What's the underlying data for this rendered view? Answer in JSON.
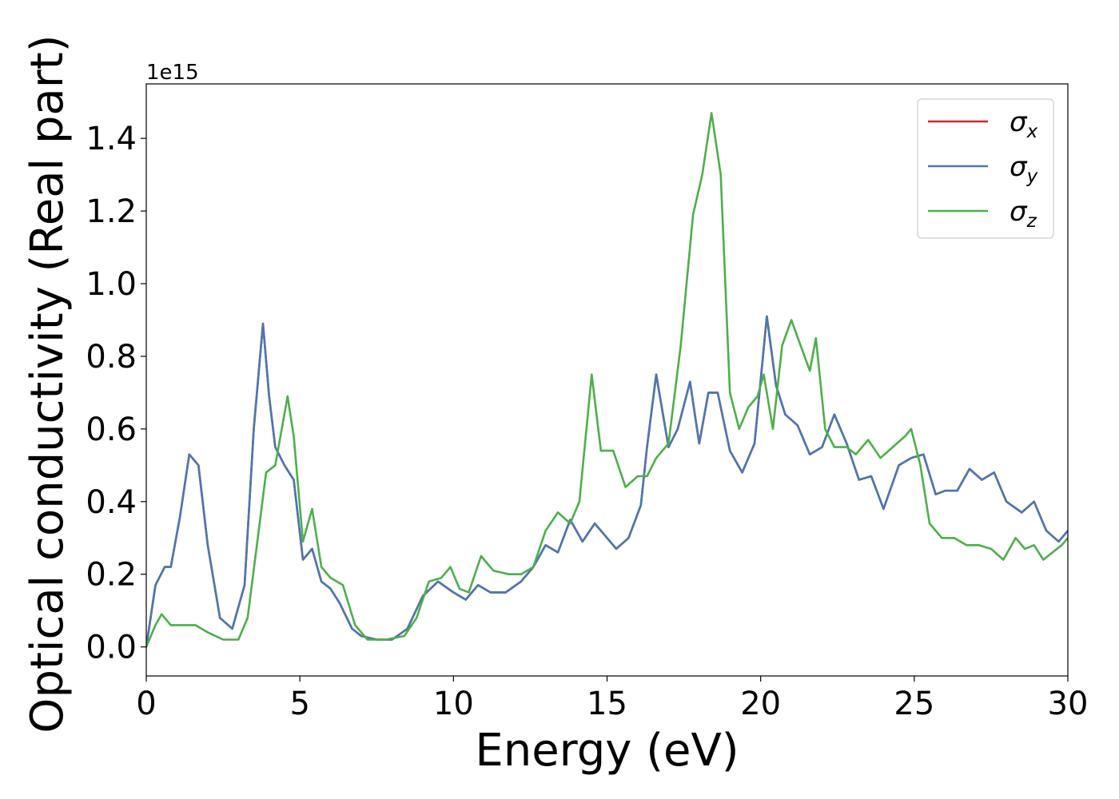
{
  "chart_data": {
    "type": "line",
    "title": "",
    "xlabel": "Energy (eV)",
    "ylabel": "Optical conductivity (Real part)",
    "offset_text": "1e15",
    "xlim": [
      0,
      30
    ],
    "ylim": [
      -0.08,
      1.55
    ],
    "xticks": [
      0,
      5,
      10,
      15,
      20,
      25,
      30
    ],
    "xtick_labels": [
      "0",
      "5",
      "10",
      "15",
      "20",
      "25",
      "30"
    ],
    "yticks": [
      0.0,
      0.2,
      0.4,
      0.6,
      0.8,
      1.0,
      1.2,
      1.4
    ],
    "ytick_labels": [
      "0.0",
      "0.2",
      "0.4",
      "0.6",
      "0.8",
      "1.0",
      "1.2",
      "1.4"
    ],
    "grid": false,
    "legend_position": "top-right",
    "series": [
      {
        "name": "σ",
        "subscript": "x",
        "color": "#d62728",
        "x": [
          0,
          0.3,
          0.6,
          0.8,
          1.1,
          1.4,
          1.7,
          2.0,
          2.4,
          2.8,
          3.2,
          3.5,
          3.8,
          4.0,
          4.2,
          4.5,
          4.8,
          5.1,
          5.4,
          5.7,
          6.0,
          6.3,
          6.7,
          7.0,
          7.5,
          8.0,
          8.5,
          9.0,
          9.5,
          10.0,
          10.4,
          10.8,
          11.2,
          11.7,
          12.2,
          12.6,
          13.0,
          13.4,
          13.8,
          14.2,
          14.6,
          15.0,
          15.3,
          15.7,
          16.1,
          16.3,
          16.6,
          17.0,
          17.3,
          17.7,
          18.0,
          18.3,
          18.6,
          19.0,
          19.4,
          19.8,
          20.2,
          20.5,
          20.8,
          21.2,
          21.6,
          22.0,
          22.4,
          22.8,
          23.2,
          23.6,
          24.0,
          24.5,
          24.9,
          25.3,
          25.7,
          26.0,
          26.4,
          26.8,
          27.2,
          27.6,
          28.0,
          28.5,
          28.9,
          29.3,
          29.7,
          30.0
        ],
        "values": [
          0.0,
          0.17,
          0.22,
          0.22,
          0.36,
          0.53,
          0.5,
          0.28,
          0.08,
          0.05,
          0.17,
          0.6,
          0.89,
          0.69,
          0.55,
          0.5,
          0.46,
          0.24,
          0.27,
          0.18,
          0.16,
          0.12,
          0.05,
          0.03,
          0.02,
          0.02,
          0.05,
          0.14,
          0.18,
          0.15,
          0.13,
          0.17,
          0.15,
          0.15,
          0.18,
          0.22,
          0.28,
          0.26,
          0.35,
          0.29,
          0.34,
          0.3,
          0.27,
          0.3,
          0.39,
          0.55,
          0.75,
          0.55,
          0.6,
          0.73,
          0.56,
          0.7,
          0.7,
          0.54,
          0.48,
          0.56,
          0.91,
          0.72,
          0.64,
          0.61,
          0.53,
          0.55,
          0.64,
          0.56,
          0.46,
          0.47,
          0.38,
          0.5,
          0.52,
          0.53,
          0.42,
          0.43,
          0.43,
          0.49,
          0.46,
          0.48,
          0.4,
          0.37,
          0.4,
          0.32,
          0.29,
          0.32
        ]
      },
      {
        "name": "σ",
        "subscript": "y",
        "color": "#4a78b0",
        "x": [
          0,
          0.3,
          0.6,
          0.8,
          1.1,
          1.4,
          1.7,
          2.0,
          2.4,
          2.8,
          3.2,
          3.5,
          3.8,
          4.0,
          4.2,
          4.5,
          4.8,
          5.1,
          5.4,
          5.7,
          6.0,
          6.3,
          6.7,
          7.0,
          7.5,
          8.0,
          8.5,
          9.0,
          9.5,
          10.0,
          10.4,
          10.8,
          11.2,
          11.7,
          12.2,
          12.6,
          13.0,
          13.4,
          13.8,
          14.2,
          14.6,
          15.0,
          15.3,
          15.7,
          16.1,
          16.3,
          16.6,
          17.0,
          17.3,
          17.7,
          18.0,
          18.3,
          18.6,
          19.0,
          19.4,
          19.8,
          20.2,
          20.5,
          20.8,
          21.2,
          21.6,
          22.0,
          22.4,
          22.8,
          23.2,
          23.6,
          24.0,
          24.5,
          24.9,
          25.3,
          25.7,
          26.0,
          26.4,
          26.8,
          27.2,
          27.6,
          28.0,
          28.5,
          28.9,
          29.3,
          29.7,
          30.0
        ],
        "values": [
          0.0,
          0.17,
          0.22,
          0.22,
          0.36,
          0.53,
          0.5,
          0.28,
          0.08,
          0.05,
          0.17,
          0.6,
          0.89,
          0.69,
          0.55,
          0.5,
          0.46,
          0.24,
          0.27,
          0.18,
          0.16,
          0.12,
          0.05,
          0.03,
          0.02,
          0.02,
          0.05,
          0.14,
          0.18,
          0.15,
          0.13,
          0.17,
          0.15,
          0.15,
          0.18,
          0.22,
          0.28,
          0.26,
          0.35,
          0.29,
          0.34,
          0.3,
          0.27,
          0.3,
          0.39,
          0.55,
          0.75,
          0.55,
          0.6,
          0.73,
          0.56,
          0.7,
          0.7,
          0.54,
          0.48,
          0.56,
          0.91,
          0.72,
          0.64,
          0.61,
          0.53,
          0.55,
          0.64,
          0.56,
          0.46,
          0.47,
          0.38,
          0.5,
          0.52,
          0.53,
          0.42,
          0.43,
          0.43,
          0.49,
          0.46,
          0.48,
          0.4,
          0.37,
          0.4,
          0.32,
          0.29,
          0.32
        ]
      },
      {
        "name": "σ",
        "subscript": "z",
        "color": "#4daf4a",
        "x": [
          0,
          0.3,
          0.5,
          0.8,
          1.2,
          1.6,
          2.0,
          2.5,
          3.0,
          3.3,
          3.6,
          3.9,
          4.2,
          4.6,
          4.8,
          5.1,
          5.4,
          5.7,
          6.0,
          6.4,
          6.8,
          7.2,
          7.8,
          8.4,
          8.8,
          9.2,
          9.6,
          9.9,
          10.2,
          10.5,
          10.9,
          11.3,
          11.8,
          12.2,
          12.6,
          13.0,
          13.4,
          13.8,
          14.1,
          14.5,
          14.8,
          15.2,
          15.6,
          16.0,
          16.3,
          16.6,
          17.0,
          17.4,
          17.8,
          18.1,
          18.4,
          18.7,
          19.0,
          19.3,
          19.6,
          19.9,
          20.1,
          20.4,
          20.7,
          21.0,
          21.3,
          21.6,
          21.8,
          22.1,
          22.4,
          22.8,
          23.1,
          23.5,
          23.9,
          24.3,
          24.7,
          24.9,
          25.2,
          25.5,
          25.9,
          26.3,
          26.7,
          27.1,
          27.5,
          27.9,
          28.3,
          28.6,
          28.9,
          29.2,
          29.5,
          29.8,
          30.0
        ],
        "values": [
          0.0,
          0.06,
          0.09,
          0.06,
          0.06,
          0.06,
          0.04,
          0.02,
          0.02,
          0.08,
          0.28,
          0.48,
          0.5,
          0.69,
          0.58,
          0.29,
          0.38,
          0.22,
          0.19,
          0.17,
          0.06,
          0.02,
          0.02,
          0.03,
          0.08,
          0.18,
          0.19,
          0.22,
          0.16,
          0.15,
          0.25,
          0.21,
          0.2,
          0.2,
          0.22,
          0.32,
          0.37,
          0.34,
          0.4,
          0.75,
          0.54,
          0.54,
          0.44,
          0.47,
          0.47,
          0.52,
          0.56,
          0.83,
          1.19,
          1.3,
          1.47,
          1.3,
          0.7,
          0.6,
          0.66,
          0.69,
          0.75,
          0.6,
          0.83,
          0.9,
          0.83,
          0.76,
          0.85,
          0.6,
          0.55,
          0.55,
          0.53,
          0.57,
          0.52,
          0.55,
          0.58,
          0.6,
          0.5,
          0.34,
          0.3,
          0.3,
          0.28,
          0.28,
          0.27,
          0.24,
          0.3,
          0.27,
          0.28,
          0.24,
          0.26,
          0.28,
          0.3
        ]
      }
    ]
  }
}
